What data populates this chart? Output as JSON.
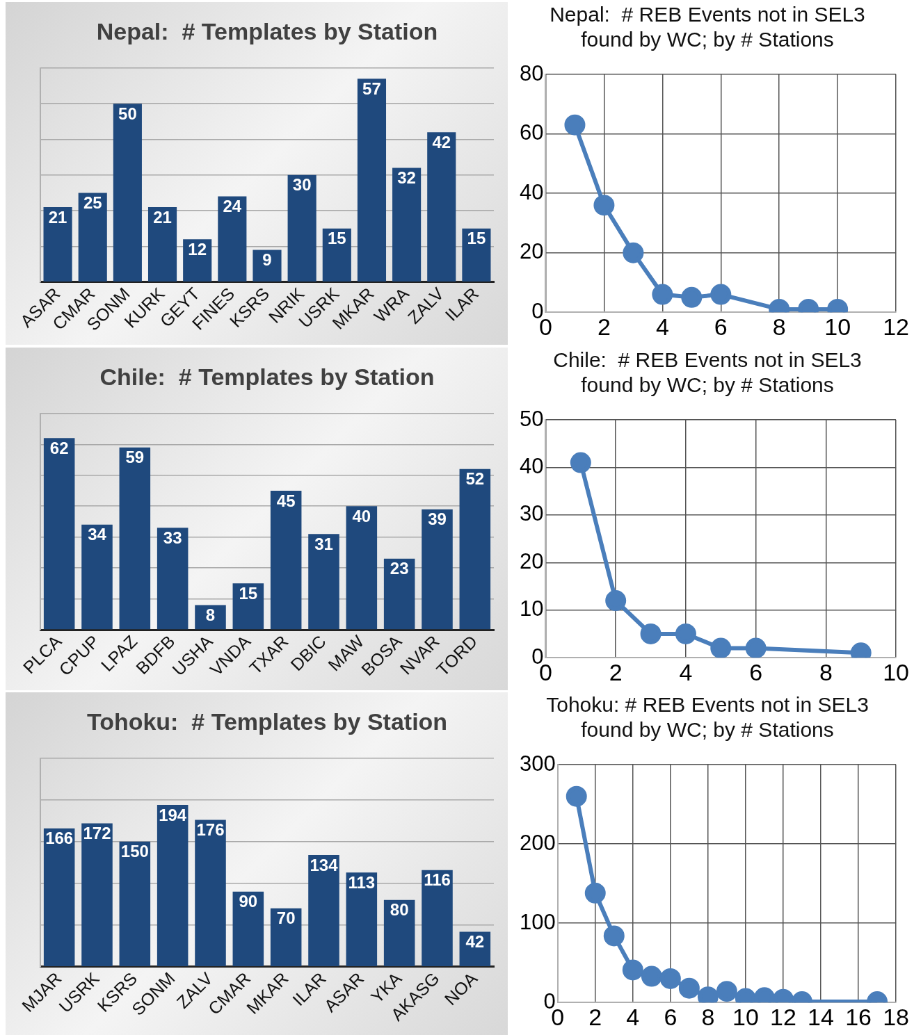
{
  "chart_data": [
    {
      "type": "bar",
      "title": "Nepal:  # Templates by Station",
      "categories": [
        "ASAR",
        "CMAR",
        "SONM",
        "KURK",
        "GEYT",
        "FINES",
        "KSRS",
        "NRIK",
        "USRK",
        "MKAR",
        "WRA",
        "ZALV",
        "ILAR"
      ],
      "values": [
        21,
        25,
        50,
        21,
        12,
        24,
        9,
        30,
        15,
        57,
        32,
        42,
        15
      ],
      "color": "#1f497d",
      "data_labels": true,
      "grid": "y",
      "tick_labels": "x",
      "legend": false,
      "ylim": [
        0,
        60
      ],
      "yticks": [
        {
          "value": 0,
          "label": null
        },
        {
          "value": 10,
          "label": null
        },
        {
          "value": 20,
          "label": null
        },
        {
          "value": 30,
          "label": null
        },
        {
          "value": 40,
          "label": null
        },
        {
          "value": 50,
          "label": null
        },
        {
          "value": 60,
          "label": null
        }
      ]
    },
    {
      "type": "line",
      "title": "Nepal:  # REB Events not in SEL3\nfound by WC; by # Stations",
      "x": [
        1,
        2,
        3,
        4,
        5,
        6,
        8,
        9,
        10
      ],
      "values": [
        63,
        36,
        20,
        6,
        5,
        6,
        1,
        1,
        1
      ],
      "color": "#4a7ebb",
      "marker": "circle",
      "grid": true,
      "legend": false,
      "xlim": [
        0,
        12
      ],
      "xticks": [
        0,
        2,
        4,
        6,
        8,
        10,
        12
      ],
      "ylim": [
        0,
        80
      ],
      "yticks": [
        0,
        20,
        40,
        60,
        80
      ]
    },
    {
      "type": "bar",
      "title": "Chile:  # Templates by Station",
      "categories": [
        "PLCA",
        "CPUP",
        "LPAZ",
        "BDFB",
        "USHA",
        "VNDA",
        "TXAR",
        "DBIC",
        "MAW",
        "BOSA",
        "NVAR",
        "TORD"
      ],
      "values": [
        62,
        34,
        59,
        33,
        8,
        15,
        45,
        31,
        40,
        23,
        39,
        52
      ],
      "color": "#1f497d",
      "data_labels": true,
      "grid": "y",
      "tick_labels": "x",
      "legend": false,
      "ylim": [
        0,
        70
      ],
      "yticks": [
        {
          "value": 0,
          "label": null
        },
        {
          "value": 10,
          "label": null
        },
        {
          "value": 20,
          "label": null
        },
        {
          "value": 30,
          "label": null
        },
        {
          "value": 40,
          "label": null
        },
        {
          "value": 50,
          "label": null
        },
        {
          "value": 60,
          "label": null
        },
        {
          "value": 70,
          "label": null
        }
      ]
    },
    {
      "type": "line",
      "title": "Chile:  # REB Events not in SEL3\nfound by WC; by # Stations",
      "x": [
        1,
        2,
        3,
        4,
        5,
        6,
        9
      ],
      "values": [
        41,
        12,
        5,
        5,
        2,
        2,
        1
      ],
      "color": "#4a7ebb",
      "marker": "circle",
      "grid": true,
      "legend": false,
      "xlim": [
        0,
        10
      ],
      "xticks": [
        0,
        2,
        4,
        6,
        8,
        10
      ],
      "ylim": [
        0,
        50
      ],
      "yticks": [
        0,
        10,
        20,
        30,
        40,
        50
      ]
    },
    {
      "type": "bar",
      "title": "Tohoku:  # Templates by Station",
      "categories": [
        "MJAR",
        "USRK",
        "KSRS",
        "SONM",
        "ZALV",
        "CMAR",
        "MKAR",
        "ILAR",
        "ASAR",
        "YKA",
        "AKASG",
        "NOA"
      ],
      "values": [
        166,
        172,
        150,
        194,
        176,
        90,
        70,
        134,
        113,
        80,
        116,
        42
      ],
      "color": "#1f497d",
      "data_labels": true,
      "grid": "y",
      "tick_labels": "x",
      "legend": false,
      "ylim": [
        0,
        250
      ],
      "yticks": [
        {
          "value": 0,
          "label": null
        },
        {
          "value": 50,
          "label": null
        },
        {
          "value": 100,
          "label": null
        },
        {
          "value": 150,
          "label": null
        },
        {
          "value": 200,
          "label": null
        },
        {
          "value": 250,
          "label": null
        }
      ]
    },
    {
      "type": "line",
      "title": "Tohoku: # REB Events not in SEL3\nfound by WC; by # Stations",
      "x": [
        1,
        2,
        3,
        4,
        5,
        6,
        7,
        8,
        9,
        10,
        11,
        12,
        13,
        17
      ],
      "values": [
        260,
        138,
        84,
        41,
        33,
        30,
        18,
        7,
        14,
        5,
        6,
        4,
        1,
        1
      ],
      "color": "#4a7ebb",
      "marker": "circle",
      "grid": true,
      "legend": false,
      "xlim": [
        0,
        18
      ],
      "xticks": [
        0,
        2,
        4,
        6,
        8,
        10,
        12,
        14,
        16,
        18
      ],
      "ylim": [
        0,
        300
      ],
      "yticks": [
        0,
        100,
        200,
        300
      ]
    }
  ]
}
